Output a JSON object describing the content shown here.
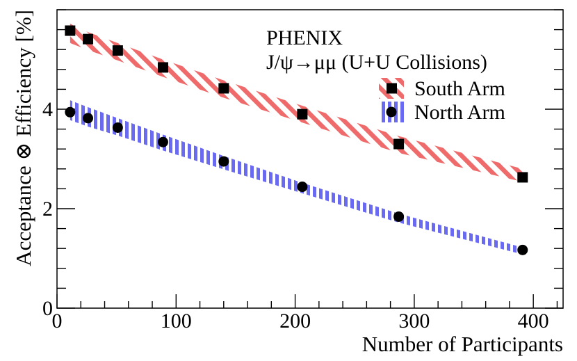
{
  "chart_data": {
    "type": "scatter",
    "title": "",
    "experiment": "PHENIX",
    "process": "J/ψ→μμ (U+U Collisions)",
    "xlabel": "Number of Participants",
    "ylabel": "Acceptance ⊗ Efficiency [%]",
    "xlim": [
      0,
      425
    ],
    "ylim": [
      0,
      6.0
    ],
    "x_major_ticks": [
      0,
      100,
      200,
      300,
      400
    ],
    "x_tick_labels": [
      "0",
      "100",
      "200",
      "300",
      "400"
    ],
    "y_major_ticks": [
      0,
      2,
      4
    ],
    "y_tick_labels": [
      "0",
      "2",
      "4"
    ],
    "x_minor_step": 20,
    "y_minor_step": 0.4,
    "legend_position": "top-right",
    "series": [
      {
        "name": "South Arm",
        "marker": "square",
        "color": "#000000",
        "band_color": "#ef6b6b",
        "band_hatch": "diagonal",
        "x": [
          11,
          26,
          51,
          89,
          140,
          206,
          287,
          391
        ],
        "values": [
          5.58,
          5.41,
          5.18,
          4.84,
          4.42,
          3.9,
          3.3,
          2.63
        ],
        "band_upper": [
          5.72,
          5.55,
          5.33,
          5.0,
          4.58,
          4.07,
          3.46,
          2.8
        ],
        "band_lower": [
          5.33,
          5.19,
          4.98,
          4.65,
          4.23,
          3.73,
          3.12,
          2.54
        ]
      },
      {
        "name": "North Arm",
        "marker": "circle",
        "color": "#000000",
        "band_color": "#6a6af0",
        "band_hatch": "vertical",
        "x": [
          11,
          26,
          51,
          89,
          140,
          206,
          287,
          391
        ],
        "values": [
          3.94,
          3.82,
          3.63,
          3.34,
          2.95,
          2.44,
          1.84,
          1.17
        ],
        "band_upper": [
          4.18,
          4.04,
          3.82,
          3.49,
          3.06,
          2.52,
          1.9,
          1.22
        ],
        "band_lower": [
          3.78,
          3.65,
          3.47,
          3.17,
          2.79,
          2.31,
          1.72,
          1.08
        ]
      }
    ]
  }
}
